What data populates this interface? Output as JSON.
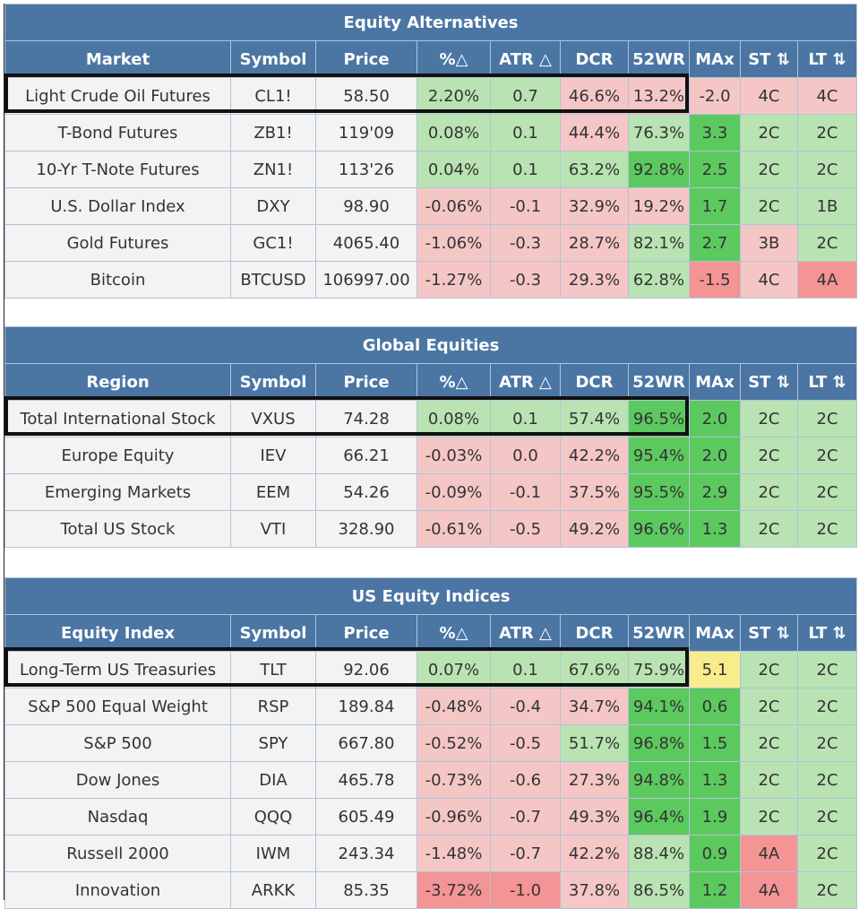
{
  "sections": [
    {
      "title": "Equity Alternatives",
      "headers": [
        "Market",
        "Symbol",
        "Price",
        "%△",
        "ATR △",
        "DCR",
        "52WR",
        "MAx",
        "ST ⇅",
        "LT ⇅"
      ],
      "rows": [
        [
          "Light Crude Oil Futures",
          "CL1!",
          "58.50",
          "2.20%",
          "0.7",
          "46.6%",
          "13.2%",
          "-2.0",
          "4C",
          "4C"
        ],
        [
          "T-Bond Futures",
          "ZB1!",
          "119'09",
          "0.08%",
          "0.1",
          "44.4%",
          "76.3%",
          "3.3",
          "2C",
          "2C"
        ],
        [
          "10-Yr T-Note Futures",
          "ZN1!",
          "113'26",
          "0.04%",
          "0.1",
          "63.2%",
          "92.8%",
          "2.5",
          "2C",
          "2C"
        ],
        [
          "U.S. Dollar Index",
          "DXY",
          "98.90",
          "-0.06%",
          "-0.1",
          "32.9%",
          "19.2%",
          "1.7",
          "2C",
          "1B"
        ],
        [
          "Gold Futures",
          "GC1!",
          "4065.40",
          "-1.06%",
          "-0.3",
          "28.7%",
          "82.1%",
          "2.7",
          "3B",
          "2C"
        ],
        [
          "Bitcoin",
          "BTCUSD",
          "106997.00",
          "-1.27%",
          "-0.3",
          "29.3%",
          "62.8%",
          "-1.5",
          "4C",
          "4A"
        ]
      ]
    },
    {
      "title": "Global Equities",
      "headers": [
        "Region",
        "Symbol",
        "Price",
        "%△",
        "ATR △",
        "DCR",
        "52WR",
        "MAx",
        "ST ⇅",
        "LT ⇅"
      ],
      "rows": [
        [
          "Total International Stock",
          "VXUS",
          "74.28",
          "0.08%",
          "0.1",
          "57.4%",
          "96.5%",
          "2.0",
          "2C",
          "2C"
        ],
        [
          "Europe Equity",
          "IEV",
          "66.21",
          "-0.03%",
          "0.0",
          "42.2%",
          "95.4%",
          "2.0",
          "2C",
          "2C"
        ],
        [
          "Emerging Markets",
          "EEM",
          "54.26",
          "-0.09%",
          "-0.1",
          "37.5%",
          "95.5%",
          "2.9",
          "2C",
          "2C"
        ],
        [
          "Total US Stock",
          "VTI",
          "328.90",
          "-0.61%",
          "-0.5",
          "49.2%",
          "96.6%",
          "1.3",
          "2C",
          "2C"
        ]
      ]
    },
    {
      "title": "US Equity Indices",
      "headers": [
        "Equity Index",
        "Symbol",
        "Price",
        "%△",
        "ATR △",
        "DCR",
        "52WR",
        "MAx",
        "ST ⇅",
        "LT ⇅"
      ],
      "rows": [
        [
          "Long-Term US Treasuries",
          "TLT",
          "92.06",
          "0.07%",
          "0.1",
          "67.6%",
          "75.9%",
          "5.1",
          "2C",
          "2C"
        ],
        [
          "S&P 500 Equal Weight",
          "RSP",
          "189.84",
          "-0.48%",
          "-0.4",
          "34.7%",
          "94.1%",
          "0.6",
          "2C",
          "2C"
        ],
        [
          "S&P 500",
          "SPY",
          "667.80",
          "-0.52%",
          "-0.5",
          "51.7%",
          "96.8%",
          "1.5",
          "2C",
          "2C"
        ],
        [
          "Dow Jones",
          "DIA",
          "465.78",
          "-0.73%",
          "-0.6",
          "27.3%",
          "94.8%",
          "1.3",
          "2C",
          "2C"
        ],
        [
          "Nasdaq",
          "QQQ",
          "605.49",
          "-0.96%",
          "-0.7",
          "49.3%",
          "96.4%",
          "1.9",
          "2C",
          "2C"
        ],
        [
          "Russell 2000",
          "IWM",
          "243.34",
          "-1.48%",
          "-0.7",
          "42.2%",
          "88.4%",
          "0.9",
          "4A",
          "2C"
        ],
        [
          "Innovation",
          "ARKK",
          "85.35",
          "-3.72%",
          "-1.0",
          "37.8%",
          "86.5%",
          "1.2",
          "4A",
          "2C"
        ]
      ]
    }
  ],
  "colors": {
    "header_blue": "#4b76a4",
    "light_green": "#b9e3b2",
    "strong_green": "#5cc95f",
    "light_red": "#f5c6c6",
    "strong_red": "#f49494",
    "yellow": "#f8ec8c",
    "neutral": "#f3f3f3"
  },
  "cell_colors": [
    [
      [
        "n",
        "n",
        "n",
        "g",
        "g",
        "r",
        "r",
        "r",
        "r",
        "r"
      ],
      [
        "n",
        "n",
        "n",
        "g",
        "g",
        "r",
        "g",
        "gg",
        "g",
        "g"
      ],
      [
        "n",
        "n",
        "n",
        "g",
        "g",
        "g",
        "gg",
        "gg",
        "g",
        "g"
      ],
      [
        "n",
        "n",
        "n",
        "r",
        "r",
        "r",
        "r",
        "gg",
        "g",
        "g"
      ],
      [
        "n",
        "n",
        "n",
        "r",
        "r",
        "r",
        "g",
        "gg",
        "r",
        "g"
      ],
      [
        "n",
        "n",
        "n",
        "r",
        "r",
        "r",
        "g",
        "rr",
        "r",
        "rr"
      ]
    ],
    [
      [
        "n",
        "n",
        "n",
        "g",
        "g",
        "g",
        "gg",
        "gg",
        "g",
        "g"
      ],
      [
        "n",
        "n",
        "n",
        "r",
        "r",
        "r",
        "gg",
        "gg",
        "g",
        "g"
      ],
      [
        "n",
        "n",
        "n",
        "r",
        "r",
        "r",
        "gg",
        "gg",
        "g",
        "g"
      ],
      [
        "n",
        "n",
        "n",
        "r",
        "r",
        "r",
        "gg",
        "gg",
        "g",
        "g"
      ]
    ],
    [
      [
        "n",
        "n",
        "n",
        "g",
        "g",
        "g",
        "g",
        "y",
        "g",
        "g"
      ],
      [
        "n",
        "n",
        "n",
        "r",
        "r",
        "r",
        "gg",
        "gg",
        "g",
        "g"
      ],
      [
        "n",
        "n",
        "n",
        "r",
        "r",
        "g",
        "gg",
        "gg",
        "g",
        "g"
      ],
      [
        "n",
        "n",
        "n",
        "r",
        "r",
        "r",
        "gg",
        "gg",
        "g",
        "g"
      ],
      [
        "n",
        "n",
        "n",
        "r",
        "r",
        "r",
        "gg",
        "gg",
        "g",
        "g"
      ],
      [
        "n",
        "n",
        "n",
        "r",
        "r",
        "r",
        "g",
        "gg",
        "rr",
        "g"
      ],
      [
        "n",
        "n",
        "n",
        "rr",
        "rr",
        "r",
        "g",
        "gg",
        "rr",
        "g"
      ]
    ]
  ]
}
